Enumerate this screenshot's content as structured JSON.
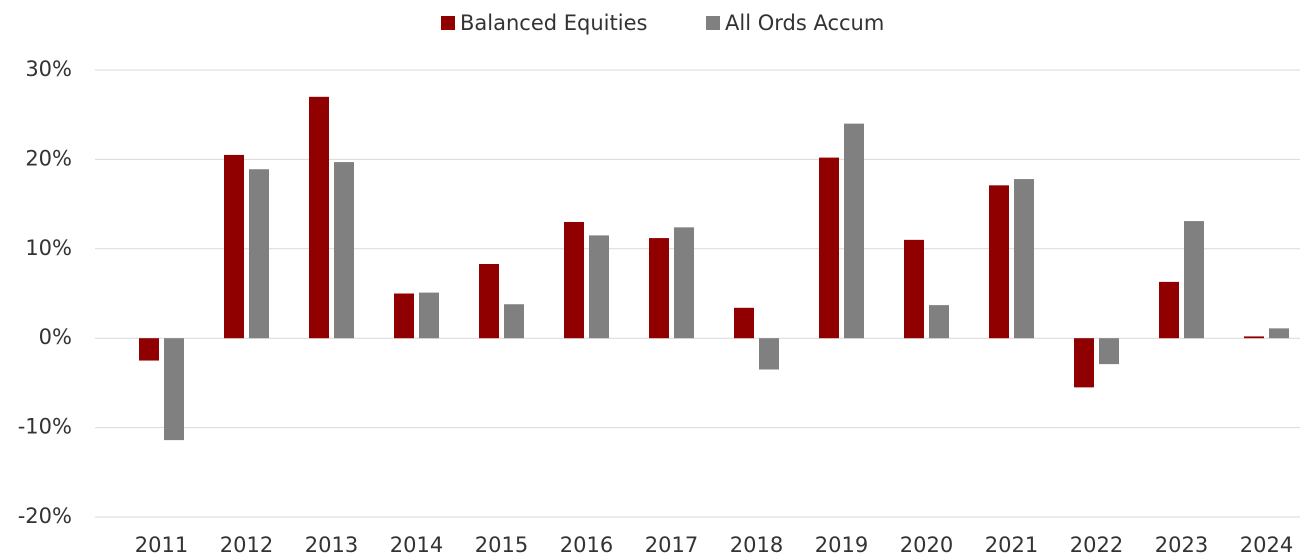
{
  "chart_data": {
    "type": "bar",
    "categories": [
      "2011",
      "2012",
      "2013",
      "2014",
      "2015",
      "2016",
      "2017",
      "2018",
      "2019",
      "2020",
      "2021",
      "2022",
      "2023",
      "2024"
    ],
    "series": [
      {
        "name": "Balanced Equities",
        "color": "#900000",
        "values": [
          -2.5,
          20.5,
          27.0,
          5.0,
          8.3,
          13.0,
          11.2,
          3.4,
          20.2,
          11.0,
          17.1,
          -5.5,
          6.3,
          0.2
        ]
      },
      {
        "name": "All Ords Accum",
        "color": "#808080",
        "values": [
          -11.4,
          18.9,
          19.7,
          5.1,
          3.8,
          11.5,
          12.4,
          -3.5,
          24.0,
          3.7,
          17.8,
          -2.9,
          13.1,
          1.1
        ]
      }
    ],
    "ylim": [
      -20,
      30
    ],
    "yticks": [
      {
        "value": -20,
        "label": "-20%"
      },
      {
        "value": -10,
        "label": "-10%"
      },
      {
        "value": 0,
        "label": "0%"
      },
      {
        "value": 10,
        "label": "10%"
      },
      {
        "value": 20,
        "label": "20%"
      },
      {
        "value": 30,
        "label": "30%"
      }
    ],
    "grid": true,
    "legend": "top"
  }
}
